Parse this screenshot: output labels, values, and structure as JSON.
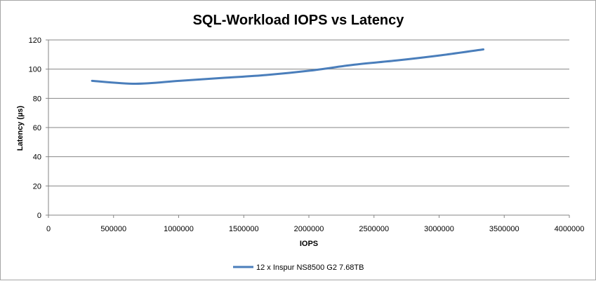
{
  "chart_data": {
    "type": "line",
    "title": "SQL-Workload IOPS vs Latency",
    "xlabel": "IOPS",
    "ylabel": "Latency (µs)",
    "xlim": [
      0,
      4000000
    ],
    "ylim": [
      0,
      120
    ],
    "x_ticks": [
      "0",
      "500000",
      "1000000",
      "1500000",
      "2000000",
      "2500000",
      "3000000",
      "3500000",
      "4000000"
    ],
    "y_ticks": [
      "0",
      "20",
      "40",
      "60",
      "80",
      "100",
      "120"
    ],
    "grid": "horizontal",
    "legend_position": "bottom",
    "series": [
      {
        "name": "12 x Inspur NS8500 G2 7.68TB",
        "color": "#4a7ebb",
        "x": [
          335000,
          670000,
          1005000,
          1340000,
          1675000,
          2010000,
          2345000,
          2680000,
          3015000,
          3340000
        ],
        "y": [
          92,
          90,
          92,
          94,
          96,
          99,
          103,
          106,
          109.5,
          113.5
        ]
      }
    ]
  }
}
